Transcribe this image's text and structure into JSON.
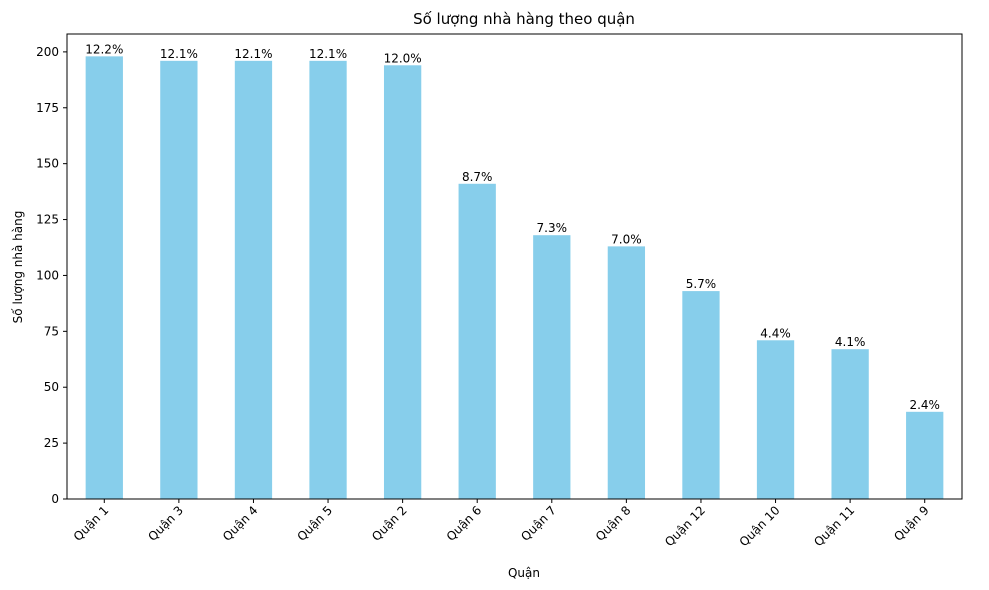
{
  "chart_data": {
    "type": "bar",
    "title": "Số lượng nhà hàng theo quận",
    "xlabel": "Quận",
    "ylabel": "Số lượng nhà hàng",
    "categories": [
      "Quận 1",
      "Quận 3",
      "Quận 4",
      "Quận 5",
      "Quận 2",
      "Quận 6",
      "Quận 7",
      "Quận 8",
      "Quận 12",
      "Quận 10",
      "Quận 11",
      "Quận 9"
    ],
    "values": [
      198,
      196,
      196,
      196,
      194,
      141,
      118,
      113,
      93,
      71,
      67,
      39
    ],
    "data_labels": [
      "12.2%",
      "12.1%",
      "12.1%",
      "12.1%",
      "12.0%",
      "8.7%",
      "7.3%",
      "7.0%",
      "5.7%",
      "4.4%",
      "4.1%",
      "2.4%"
    ],
    "yticks": [
      0,
      25,
      50,
      75,
      100,
      125,
      150,
      175,
      200
    ],
    "ylim": [
      0,
      208
    ],
    "bar_color": "#87CEEB",
    "xtick_rotation": 45,
    "grid": false,
    "legend": "none"
  }
}
